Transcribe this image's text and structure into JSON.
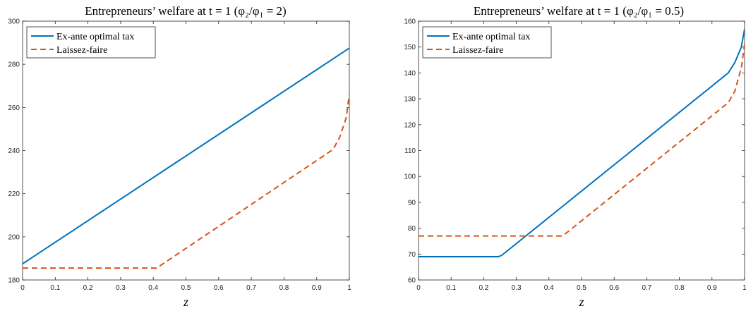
{
  "chart_data": [
    {
      "type": "line",
      "title": "Entrepreneurs’ welfare at t = 1 (φ₂/φ₁ = 2)",
      "xlabel": "z",
      "ylabel": "",
      "xlim": [
        0,
        1
      ],
      "ylim": [
        180,
        300
      ],
      "xticks": [
        "0",
        "0.1",
        "0.2",
        "0.3",
        "0.4",
        "0.5",
        "0.6",
        "0.7",
        "0.8",
        "0.9",
        "1"
      ],
      "yticks": [
        "180",
        "200",
        "220",
        "240",
        "260",
        "280",
        "300"
      ],
      "grid": false,
      "legend_position": "top-left",
      "series": [
        {
          "name": "Ex-ante optimal tax",
          "color": "#0072BD",
          "style": "solid",
          "x": [
            0,
            1
          ],
          "y": [
            187.5,
            287.5
          ]
        },
        {
          "name": "Laissez-faire",
          "color": "#D95319",
          "style": "dashed",
          "x": [
            0,
            0.41,
            0.95,
            0.97,
            0.99,
            1
          ],
          "y": [
            185.5,
            185.5,
            240.5,
            246,
            255,
            266
          ]
        }
      ]
    },
    {
      "type": "line",
      "title": "Entrepreneurs’ welfare at t = 1 (φ₂/φ₁ = 0.5)",
      "xlabel": "z",
      "ylabel": "",
      "xlim": [
        0,
        1
      ],
      "ylim": [
        60,
        160
      ],
      "xticks": [
        "0",
        "0.1",
        "0.2",
        "0.3",
        "0.4",
        "0.5",
        "0.6",
        "0.7",
        "0.8",
        "0.9",
        "1"
      ],
      "yticks": [
        "60",
        "70",
        "80",
        "90",
        "100",
        "110",
        "120",
        "130",
        "140",
        "150",
        "160"
      ],
      "grid": false,
      "legend_position": "top-left",
      "series": [
        {
          "name": "Ex-ante optimal tax",
          "color": "#0072BD",
          "style": "solid",
          "x": [
            0,
            0.245,
            0.255,
            0.95,
            0.97,
            0.99,
            1
          ],
          "y": [
            69,
            69,
            69.5,
            140,
            144,
            150,
            157
          ]
        },
        {
          "name": "Laissez-faire",
          "color": "#D95319",
          "style": "dashed",
          "x": [
            0,
            0.44,
            0.45,
            0.95,
            0.97,
            0.99,
            1
          ],
          "y": [
            77,
            77,
            77.8,
            128.5,
            133,
            142,
            151
          ]
        }
      ]
    }
  ]
}
